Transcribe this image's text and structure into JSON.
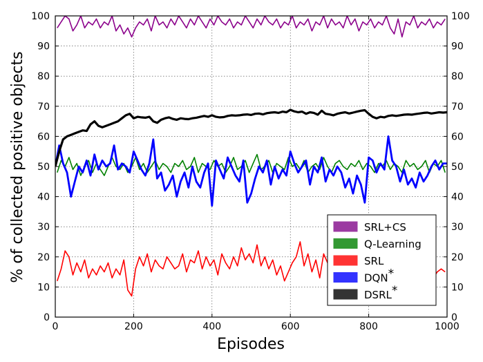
{
  "chart_data": {
    "type": "line",
    "xlabel": "Episodes",
    "ylabel": "% of collected positive objects",
    "xlim": [
      0,
      1000
    ],
    "ylim": [
      0,
      100
    ],
    "xticks": [
      "0",
      "200",
      "400",
      "600",
      "800",
      "1000"
    ],
    "yticks": [
      "0",
      "10",
      "20",
      "30",
      "40",
      "50",
      "60",
      "70",
      "80",
      "90",
      "100"
    ],
    "y_axis_mirrored_right": true,
    "grid": true,
    "legend_position": "lower-right",
    "series": [
      {
        "name": "SRL+CS",
        "color": "#8b008b",
        "legend_color": "#9b3aa1",
        "legend_label_parts": [
          "SRL+CS",
          ""
        ],
        "x": [
          5,
          15,
          25,
          35,
          45,
          55,
          65,
          75,
          85,
          95,
          105,
          115,
          125,
          135,
          145,
          155,
          165,
          175,
          185,
          195,
          205,
          215,
          225,
          235,
          245,
          255,
          265,
          275,
          285,
          295,
          305,
          315,
          325,
          335,
          345,
          355,
          365,
          375,
          385,
          395,
          405,
          415,
          425,
          435,
          445,
          455,
          465,
          475,
          485,
          495,
          505,
          515,
          525,
          535,
          545,
          555,
          565,
          575,
          585,
          595,
          605,
          615,
          625,
          635,
          645,
          655,
          665,
          675,
          685,
          695,
          705,
          715,
          725,
          735,
          745,
          755,
          765,
          775,
          785,
          795,
          805,
          815,
          825,
          835,
          845,
          855,
          865,
          875,
          885,
          895,
          905,
          915,
          925,
          935,
          945,
          955,
          965,
          975,
          985,
          995
        ],
        "values": [
          96,
          98,
          100,
          99,
          95,
          97,
          100,
          96,
          98,
          97,
          99,
          96,
          98,
          97,
          100,
          95,
          97,
          94,
          96,
          93,
          96,
          98,
          97,
          99,
          95,
          100,
          97,
          98,
          96,
          99,
          97,
          100,
          98,
          96,
          99,
          97,
          100,
          98,
          96,
          99,
          97,
          100,
          98,
          97,
          99,
          96,
          98,
          97,
          100,
          98,
          96,
          99,
          97,
          100,
          98,
          97,
          99,
          96,
          98,
          97,
          100,
          96,
          98,
          97,
          99,
          95,
          98,
          97,
          100,
          96,
          99,
          97,
          98,
          96,
          100,
          97,
          99,
          95,
          98,
          97,
          99,
          96,
          98,
          97,
          100,
          96,
          94,
          99,
          93,
          98,
          97,
          100,
          96,
          98,
          97,
          99,
          96,
          98,
          97,
          99
        ]
      },
      {
        "name": "Q-Learning",
        "color": "#008000",
        "legend_color": "#339933",
        "legend_label_parts": [
          "Q-Learning",
          ""
        ],
        "x": [
          5,
          15,
          25,
          35,
          45,
          55,
          65,
          75,
          85,
          95,
          105,
          115,
          125,
          135,
          145,
          155,
          165,
          175,
          185,
          195,
          205,
          215,
          225,
          235,
          245,
          255,
          265,
          275,
          285,
          295,
          305,
          315,
          325,
          335,
          345,
          355,
          365,
          375,
          385,
          395,
          405,
          415,
          425,
          435,
          445,
          455,
          465,
          475,
          485,
          495,
          505,
          515,
          525,
          535,
          545,
          555,
          565,
          575,
          585,
          595,
          605,
          615,
          625,
          635,
          645,
          655,
          665,
          675,
          685,
          695,
          705,
          715,
          725,
          735,
          745,
          755,
          765,
          775,
          785,
          795,
          805,
          815,
          825,
          835,
          845,
          855,
          865,
          875,
          885,
          895,
          905,
          915,
          925,
          935,
          945,
          955,
          965,
          975,
          985,
          995
        ],
        "values": [
          48,
          52,
          50,
          53,
          49,
          51,
          47,
          50,
          52,
          48,
          51,
          49,
          47,
          50,
          53,
          50,
          49,
          51,
          48,
          50,
          53,
          49,
          51,
          48,
          50,
          52,
          49,
          51,
          50,
          48,
          51,
          50,
          52,
          49,
          50,
          53,
          48,
          51,
          50,
          49,
          52,
          50,
          51,
          48,
          50,
          53,
          49,
          50,
          52,
          48,
          51,
          54,
          49,
          50,
          52,
          48,
          51,
          50,
          49,
          53,
          50,
          51,
          49,
          52,
          48,
          50,
          51,
          49,
          53,
          50,
          48,
          51,
          52,
          50,
          49,
          51,
          50,
          52,
          49,
          51,
          50,
          48,
          51,
          50,
          52,
          49,
          51,
          50,
          48,
          52,
          50,
          51,
          49,
          50,
          52,
          48,
          51,
          50,
          52,
          48
        ]
      },
      {
        "name": "SRL",
        "color": "#ff0000",
        "legend_color": "#ff3333",
        "legend_label_parts": [
          "SRL",
          ""
        ],
        "x": [
          5,
          15,
          25,
          35,
          45,
          55,
          65,
          75,
          85,
          95,
          105,
          115,
          125,
          135,
          145,
          155,
          165,
          175,
          185,
          195,
          205,
          215,
          225,
          235,
          245,
          255,
          265,
          275,
          285,
          295,
          305,
          315,
          325,
          335,
          345,
          355,
          365,
          375,
          385,
          395,
          405,
          415,
          425,
          435,
          445,
          455,
          465,
          475,
          485,
          495,
          505,
          515,
          525,
          535,
          545,
          555,
          565,
          575,
          585,
          595,
          605,
          615,
          625,
          635,
          645,
          655,
          665,
          675,
          685,
          695,
          705,
          715,
          725,
          735,
          745,
          755,
          765,
          775,
          785,
          795,
          805,
          815,
          825,
          835,
          845,
          855,
          865,
          875,
          885,
          895,
          905,
          915,
          925,
          935,
          945,
          955,
          965,
          975,
          985,
          995
        ],
        "values": [
          12,
          16,
          22,
          20,
          14,
          18,
          15,
          19,
          13,
          16,
          14,
          17,
          15,
          18,
          13,
          16,
          14,
          19,
          9,
          7,
          16,
          20,
          17,
          21,
          15,
          19,
          17,
          16,
          20,
          18,
          16,
          17,
          21,
          15,
          19,
          18,
          22,
          16,
          20,
          17,
          19,
          14,
          21,
          18,
          16,
          20,
          17,
          23,
          19,
          21,
          18,
          24,
          17,
          20,
          16,
          19,
          14,
          17,
          12,
          15,
          18,
          20,
          25,
          17,
          21,
          15,
          19,
          13,
          21,
          18,
          17,
          14,
          11,
          16,
          13,
          18,
          15,
          17,
          13,
          16,
          14,
          18,
          15,
          17,
          13,
          16,
          15,
          18,
          14,
          16,
          13,
          17,
          15,
          18,
          14,
          16,
          13,
          15,
          16,
          15
        ]
      },
      {
        "name": "DQN*",
        "color": "#0000ff",
        "legend_color": "#3333ff",
        "legend_label_parts": [
          "DQN",
          "*"
        ],
        "x": [
          0,
          10,
          20,
          30,
          40,
          50,
          60,
          70,
          80,
          90,
          100,
          110,
          120,
          130,
          140,
          150,
          160,
          170,
          180,
          190,
          200,
          210,
          220,
          230,
          240,
          250,
          260,
          270,
          280,
          290,
          300,
          310,
          320,
          330,
          340,
          350,
          360,
          370,
          380,
          390,
          400,
          410,
          420,
          430,
          440,
          450,
          460,
          470,
          480,
          490,
          500,
          510,
          520,
          530,
          540,
          550,
          560,
          570,
          580,
          590,
          600,
          610,
          620,
          630,
          640,
          650,
          660,
          670,
          680,
          690,
          700,
          710,
          720,
          730,
          740,
          750,
          760,
          770,
          780,
          790,
          800,
          810,
          820,
          830,
          840,
          850,
          860,
          870,
          880,
          890,
          900,
          910,
          920,
          930,
          940,
          950,
          960,
          970,
          980,
          990,
          1000
        ],
        "values": [
          50,
          57,
          51,
          48,
          40,
          45,
          50,
          48,
          52,
          47,
          54,
          49,
          52,
          50,
          51,
          57,
          49,
          51,
          50,
          48,
          55,
          52,
          49,
          47,
          51,
          59,
          46,
          48,
          42,
          44,
          47,
          40,
          45,
          48,
          43,
          50,
          45,
          43,
          48,
          51,
          37,
          52,
          49,
          46,
          53,
          50,
          47,
          45,
          52,
          38,
          41,
          46,
          50,
          48,
          52,
          44,
          50,
          46,
          49,
          47,
          55,
          51,
          48,
          50,
          52,
          44,
          50,
          48,
          53,
          45,
          49,
          47,
          50,
          48,
          43,
          46,
          41,
          47,
          44,
          38,
          53,
          52,
          48,
          51,
          49,
          60,
          52,
          50,
          45,
          49,
          44,
          46,
          43,
          48,
          45,
          47,
          50,
          52,
          49,
          51,
          51
        ]
      },
      {
        "name": "DSRL*",
        "color": "#000000",
        "legend_color": "#333333",
        "legend_label_parts": [
          "DSRL",
          "*"
        ],
        "x": [
          0,
          10,
          20,
          30,
          40,
          50,
          60,
          70,
          80,
          90,
          100,
          110,
          120,
          130,
          140,
          150,
          160,
          170,
          180,
          190,
          200,
          210,
          220,
          230,
          240,
          250,
          260,
          270,
          280,
          290,
          300,
          310,
          320,
          330,
          340,
          350,
          360,
          370,
          380,
          390,
          400,
          410,
          420,
          430,
          440,
          450,
          460,
          470,
          480,
          490,
          500,
          510,
          520,
          530,
          540,
          550,
          560,
          570,
          580,
          590,
          600,
          610,
          620,
          630,
          640,
          650,
          660,
          670,
          680,
          690,
          700,
          710,
          720,
          730,
          740,
          750,
          760,
          770,
          780,
          790,
          800,
          810,
          820,
          830,
          840,
          850,
          860,
          870,
          880,
          890,
          900,
          910,
          920,
          930,
          940,
          950,
          960,
          970,
          980,
          990,
          1000
        ],
        "values": [
          50,
          55,
          59,
          60,
          60.5,
          61,
          61.5,
          62,
          61.8,
          64,
          65,
          63.5,
          63,
          63.5,
          64,
          64.5,
          65,
          66,
          67,
          67.5,
          66,
          66.5,
          66.3,
          66.2,
          66.5,
          65,
          64.5,
          65.5,
          66,
          66.3,
          65.8,
          65.5,
          66,
          65.8,
          65.7,
          66,
          66.2,
          66.5,
          66.8,
          66.5,
          67,
          66.5,
          66.3,
          66.4,
          66.8,
          67,
          66.9,
          67,
          67.2,
          67.3,
          67.1,
          67.5,
          67.6,
          67.3,
          67.7,
          67.9,
          68,
          67.8,
          68.2,
          68,
          68.8,
          68.3,
          68,
          68.2,
          67.5,
          68,
          67.8,
          67.2,
          68.5,
          67.5,
          67.3,
          67,
          67.5,
          67.8,
          68,
          67.6,
          67.9,
          68.2,
          68.5,
          68.7,
          67.5,
          66.5,
          66,
          66.5,
          66.3,
          66.8,
          67,
          66.8,
          67,
          67.2,
          67.3,
          67.2,
          67.4,
          67.6,
          67.8,
          67.9,
          67.6,
          67.8,
          68,
          67.9,
          68
        ]
      }
    ]
  }
}
